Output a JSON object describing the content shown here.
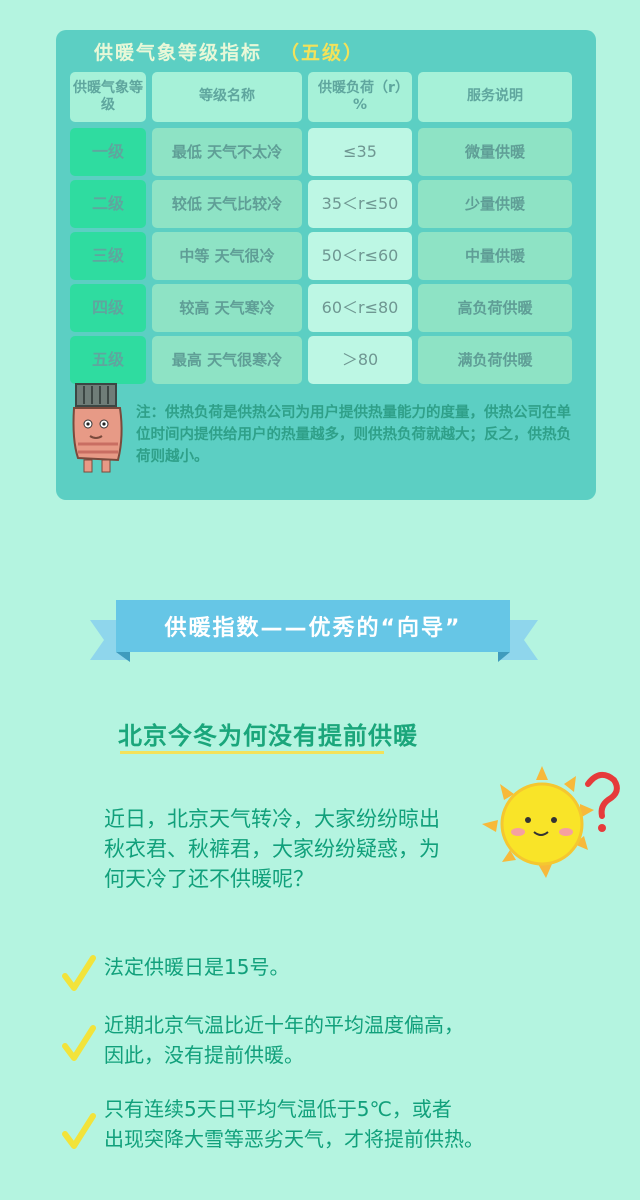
{
  "panel": {
    "title": "供暖气象等级指标",
    "grade": "（五级）",
    "headers": [
      "供暖气象等级",
      "等级名称",
      "供暖负荷（r）%",
      "服务说明"
    ],
    "rows": [
      {
        "level": "一级",
        "name": "最低 天气不太冷",
        "load": "≤35",
        "service": "微量供暖"
      },
      {
        "level": "二级",
        "name": "较低 天气比较冷",
        "load": "35＜r≤50",
        "service": "少量供暖"
      },
      {
        "level": "三级",
        "name": "中等 天气很冷",
        "load": "50＜r≤60",
        "service": "中量供暖"
      },
      {
        "level": "四级",
        "name": "较高 天气寒冷",
        "load": "60＜r≤80",
        "service": "高负荷供暖"
      },
      {
        "level": "五级",
        "name": "最高 天气很寒冷",
        "load": "＞80",
        "service": "满负荷供暖"
      }
    ],
    "note": "注：供热负荷是供热公司为用户提供热量能力的度量，供热公司在单位时间内提供给用户的热量越多，则供热负荷就越大；反之，供热负荷则越小。"
  },
  "ribbon": {
    "text": "供暖指数——优秀的“向导”"
  },
  "section": {
    "title": "北京今冬为何没有提前供暖",
    "intro": "近日，北京天气转冷，大家纷纷晾出秋衣君、秋裤君，大家纷纷疑惑，为何天冷了还不供暖呢？",
    "bullets": [
      {
        "line1": "法定供暖日是15号。",
        "line2": ""
      },
      {
        "line1": "近期北京气温比近十年的平均温度偏高，",
        "line2": "因此，没有提前供暖。"
      },
      {
        "line1": "只有连续5天日平均气温低于5℃，或者",
        "line2": "出现突降大雪等恶劣天气，才将提前供热。"
      }
    ]
  },
  "icons": {
    "mascot": "radiator-mascot-icon",
    "sun": "sun-question-icon",
    "check": "check-icon"
  },
  "colors": {
    "background": "#b4f4e0",
    "panel": "#5ccfc3",
    "accent": "#1aa67b",
    "ribbon": "#66c6e6"
  }
}
